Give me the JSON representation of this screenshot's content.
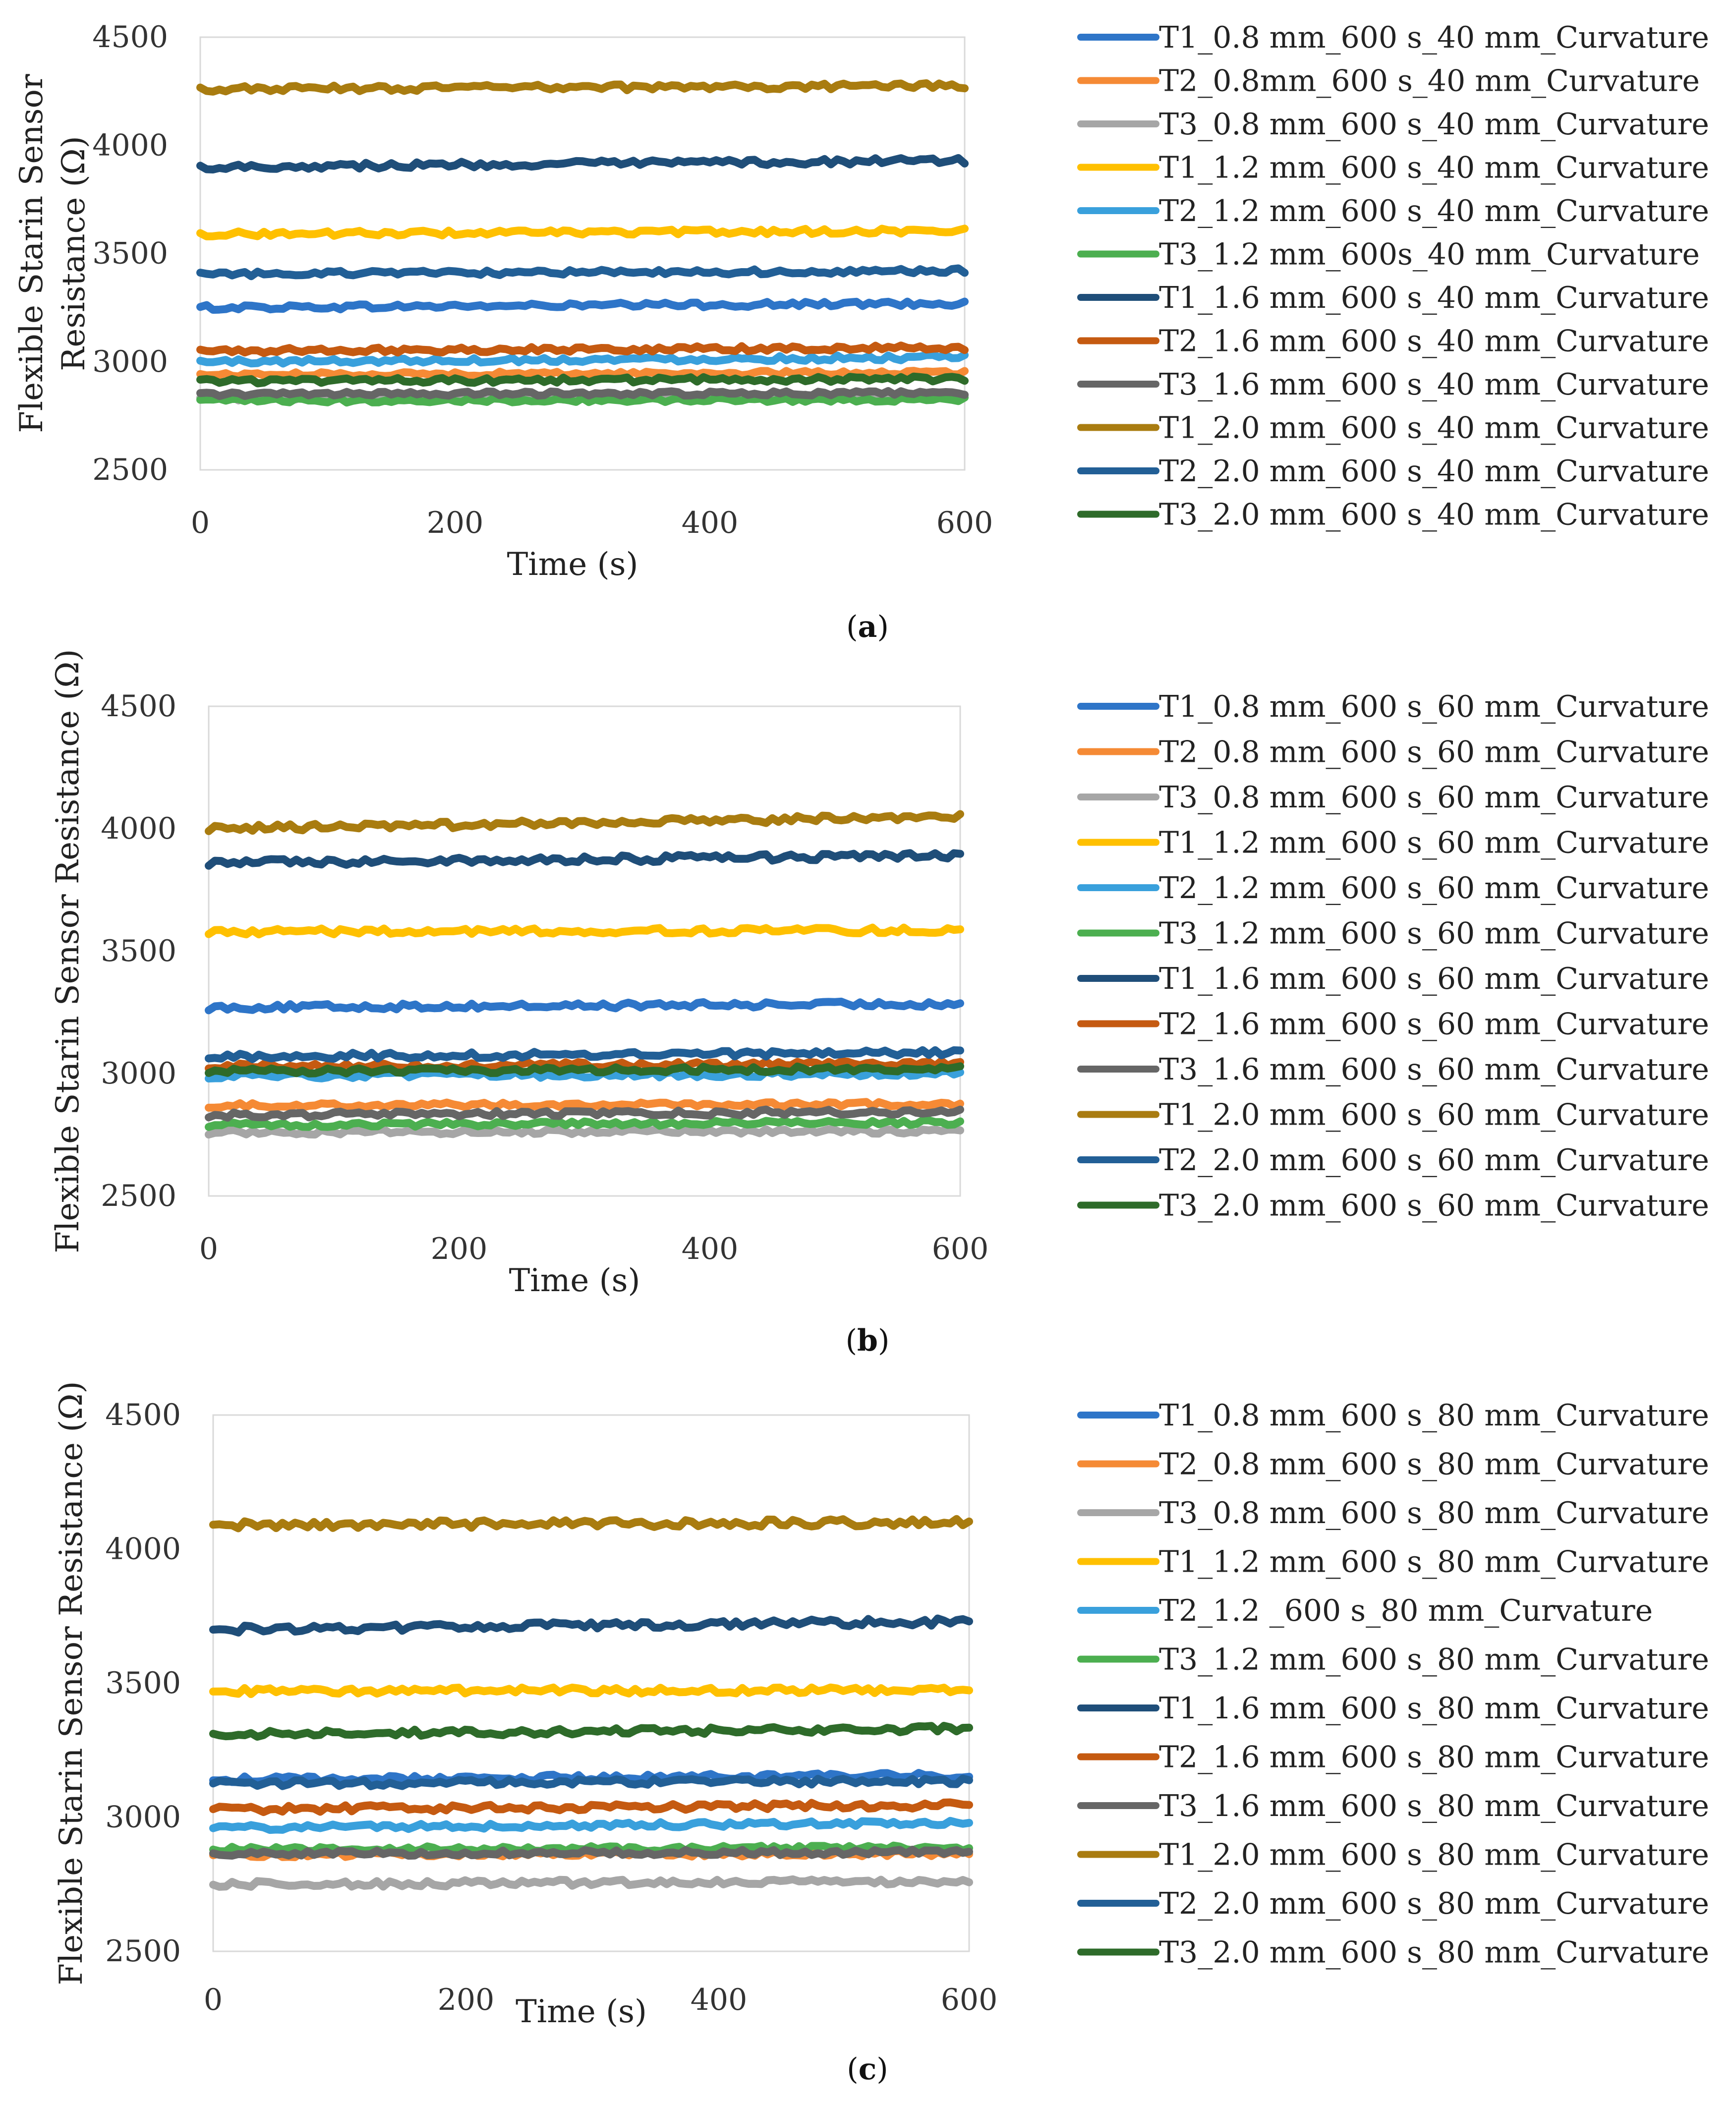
{
  "chart_data": [
    {
      "type": "line",
      "caption": "a",
      "xlabel": "Time (s)",
      "ylabel_lines": [
        "Flexible Starin Sensor",
        "Resistance (Ω)"
      ],
      "xlim": [
        0,
        600
      ],
      "ylim": [
        2500,
        4500
      ],
      "x_ticks": [
        "0",
        "200",
        "400",
        "600"
      ],
      "y_ticks": [
        "2500",
        "3000",
        "3500",
        "4000",
        "4500"
      ],
      "x_step": 5,
      "series": [
        {
          "name": "T1_0.8 mm_600 s_40 mm_Curvature",
          "color": "#2e75c8",
          "start": 3250,
          "end": 3270,
          "noise": 12
        },
        {
          "name": "T2_0.8mm_600 s_40 mm_Curvature",
          "color": "#f58a35",
          "start": 2940,
          "end": 2950,
          "noise": 10
        },
        {
          "name": "T3_0.8 mm_600 s_40 mm_Curvature",
          "color": "#a6a6a6",
          "start": 2830,
          "end": 2840,
          "noise": 10
        },
        {
          "name": "T1_1.2 mm_600 s_40 mm_Curvature",
          "color": "#ffc000",
          "start": 3590,
          "end": 3605,
          "noise": 12
        },
        {
          "name": "T2_1.2 mm_600 s_40 mm_Curvature",
          "color": "#39a0dc",
          "start": 3000,
          "end": 3020,
          "noise": 12
        },
        {
          "name": "T3_1.2 mm_600s_40 mm_Curvature",
          "color": "#4caf50",
          "start": 2820,
          "end": 2825,
          "noise": 10
        },
        {
          "name": "T1_1.6 mm_600 s_40 mm_Curvature",
          "color": "#1f4e79",
          "start": 3900,
          "end": 3930,
          "noise": 14
        },
        {
          "name": "T2_1.6 mm_600 s_40 mm_Curvature",
          "color": "#c55a11",
          "start": 3050,
          "end": 3065,
          "noise": 12
        },
        {
          "name": "T3_1.6 mm_600 s_40 mm_Curvature",
          "color": "#666666",
          "start": 2850,
          "end": 2855,
          "noise": 10
        },
        {
          "name": "T1_2.0 mm_600 s_40 mm_Curvature",
          "color": "#a97c10",
          "start": 4260,
          "end": 4275,
          "noise": 14
        },
        {
          "name": "T2_2.0 mm_600 s_40 mm_Curvature",
          "color": "#225f96",
          "start": 3405,
          "end": 3420,
          "noise": 12
        },
        {
          "name": "T3_2.0 mm_600 s_40 mm_Curvature",
          "color": "#2e6b2a",
          "start": 2910,
          "end": 2920,
          "noise": 12
        }
      ]
    },
    {
      "type": "line",
      "caption": "b",
      "xlabel": "Time (s)",
      "ylabel_lines": [
        "Flexible Starin Sensor Resistance (Ω)"
      ],
      "xlim": [
        0,
        600
      ],
      "ylim": [
        2500,
        4500
      ],
      "x_ticks": [
        "0",
        "200",
        "400",
        "600"
      ],
      "y_ticks": [
        "2500",
        "3000",
        "3500",
        "4000",
        "4500"
      ],
      "x_step": 5,
      "series": [
        {
          "name": "T1_0.8 mm_600 s_60 mm_Curvature",
          "color": "#2e75c8",
          "start": 3270,
          "end": 3285,
          "noise": 12
        },
        {
          "name": "T2_0.8 mm_600 s_60 mm_Curvature",
          "color": "#f58a35",
          "start": 2870,
          "end": 2875,
          "noise": 10
        },
        {
          "name": "T3_0.8 mm_600 s_60 mm_Curvature",
          "color": "#a6a6a6",
          "start": 2760,
          "end": 2765,
          "noise": 10
        },
        {
          "name": "T1_1.2 mm_600 s_60 mm_Curvature",
          "color": "#ffc000",
          "start": 3580,
          "end": 3585,
          "noise": 12
        },
        {
          "name": "T2_1.2 mm_600 s_60 mm_Curvature",
          "color": "#39a0dc",
          "start": 2990,
          "end": 3000,
          "noise": 12
        },
        {
          "name": "T3_1.2 mm_600 s_60 mm_Curvature",
          "color": "#4caf50",
          "start": 2790,
          "end": 2800,
          "noise": 10
        },
        {
          "name": "T1_1.6 mm_600 s_60 mm_Curvature",
          "color": "#1f4e79",
          "start": 3860,
          "end": 3890,
          "noise": 14
        },
        {
          "name": "T2_1.6 mm_600 s_60 mm_Curvature",
          "color": "#c55a11",
          "start": 3030,
          "end": 3040,
          "noise": 12
        },
        {
          "name": "T3_1.6 mm_600 s_60 mm_Curvature",
          "color": "#666666",
          "start": 2830,
          "end": 2845,
          "noise": 12
        },
        {
          "name": "T1_2.0 mm_600 s_60 mm_Curvature",
          "color": "#a97c10",
          "start": 4000,
          "end": 4050,
          "noise": 14
        },
        {
          "name": "T2_2.0 mm_600 s_60 mm_Curvature",
          "color": "#225f96",
          "start": 3070,
          "end": 3085,
          "noise": 12
        },
        {
          "name": "T3_2.0 mm_600 s_60 mm_Curvature",
          "color": "#2e6b2a",
          "start": 3010,
          "end": 3020,
          "noise": 12
        }
      ]
    },
    {
      "type": "line",
      "caption": "c",
      "xlabel": "Time (s)",
      "ylabel_lines": [
        "Flexible Starin Sensor Resistance (Ω)"
      ],
      "xlim": [
        0,
        600
      ],
      "ylim": [
        2500,
        4500
      ],
      "x_ticks": [
        "0",
        "200",
        "400",
        "600"
      ],
      "y_ticks": [
        "2500",
        "3000",
        "3500",
        "4000",
        "4500"
      ],
      "x_step": 5,
      "series": [
        {
          "name": "T1_0.8 mm_600 s_80 mm_Curvature",
          "color": "#2e75c8",
          "start": 3140,
          "end": 3155,
          "noise": 12
        },
        {
          "name": "T2_0.8 mm_600 s_80 mm_Curvature",
          "color": "#f58a35",
          "start": 2860,
          "end": 2865,
          "noise": 10
        },
        {
          "name": "T3_0.8 mm_600 s_80 mm_Curvature",
          "color": "#a6a6a6",
          "start": 2750,
          "end": 2760,
          "noise": 12
        },
        {
          "name": "T1_1.2 mm_600 s_80 mm_Curvature",
          "color": "#ffc000",
          "start": 3470,
          "end": 3475,
          "noise": 12
        },
        {
          "name": "T2_1.2 _600 s_80 mm_Curvature",
          "color": "#39a0dc",
          "start": 2960,
          "end": 2980,
          "noise": 10
        },
        {
          "name": "T3_1.2 mm_600 s_80 mm_Curvature",
          "color": "#4caf50",
          "start": 2880,
          "end": 2885,
          "noise": 10
        },
        {
          "name": "T1_1.6 mm_600 s_80 mm_Curvature",
          "color": "#1f4e79",
          "start": 3700,
          "end": 3730,
          "noise": 14
        },
        {
          "name": "T2_1.6 mm_600 s_80 mm_Curvature",
          "color": "#c55a11",
          "start": 3030,
          "end": 3045,
          "noise": 12
        },
        {
          "name": "T3_1.6 mm_600 s_80 mm_Curvature",
          "color": "#666666",
          "start": 2865,
          "end": 2870,
          "noise": 10
        },
        {
          "name": "T1_2.0 mm_600 s_80 mm_Curvature",
          "color": "#a97c10",
          "start": 4090,
          "end": 4100,
          "noise": 14
        },
        {
          "name": "T2_2.0 mm_600 s_80 mm_Curvature",
          "color": "#225f96",
          "start": 3125,
          "end": 3135,
          "noise": 12
        },
        {
          "name": "T3_2.0 mm_600 s_80 mm_Curvature",
          "color": "#2e6b2a",
          "start": 3310,
          "end": 3330,
          "noise": 12
        }
      ]
    }
  ]
}
